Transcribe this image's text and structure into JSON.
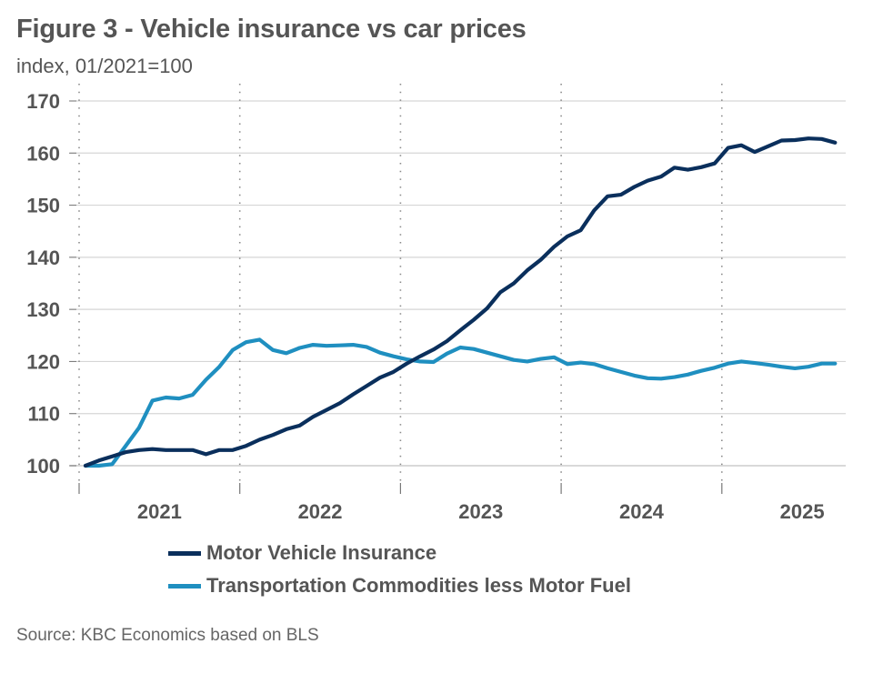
{
  "title": "Figure 3 - Vehicle insurance vs car prices",
  "subtitle": "index, 01/2021=100",
  "source": "Source: KBC Economics based on BLS",
  "chart_data": {
    "type": "line",
    "title": "Figure 3 - Vehicle insurance vs car prices",
    "subtitle": "index, 01/2021=100",
    "xlabel": "",
    "ylabel": "index, 01/2021=100",
    "ylim": [
      100,
      170
    ],
    "yticks": [
      100,
      110,
      120,
      130,
      140,
      150,
      160,
      170
    ],
    "xticks": [
      "2021",
      "2022",
      "2023",
      "2024",
      "2025"
    ],
    "x_start": "2021-01",
    "x_frequency": "monthly",
    "grid": "horizontal",
    "year_separators": "dotted vertical",
    "legend_position": "bottom",
    "colors": {
      "insurance": "#0a2f5c",
      "transport": "#1f8fc0"
    },
    "series": [
      {
        "name": "Motor Vehicle Insurance",
        "color": "#0a2f5c",
        "values": [
          100.0,
          101.0,
          101.8,
          102.6,
          103.0,
          103.2,
          103.0,
          103.0,
          103.0,
          102.2,
          103.0,
          103.0,
          103.8,
          105.0,
          105.9,
          107.0,
          107.7,
          109.4,
          110.7,
          112.0,
          113.7,
          115.3,
          116.9,
          118.0,
          119.6,
          121.0,
          122.3,
          123.9,
          126.0,
          128.0,
          130.2,
          133.3,
          135.0,
          137.5,
          139.5,
          142.0,
          144.0,
          145.2,
          149.0,
          151.7,
          152.0,
          153.5,
          154.7,
          155.5,
          157.2,
          156.8,
          157.3,
          158.0,
          161.0,
          161.5,
          160.2,
          161.3,
          162.4,
          162.5,
          162.8,
          162.7,
          162.0
        ]
      },
      {
        "name": "Transportation Commodities less Motor Fuel",
        "color": "#1f8fc0",
        "values": [
          100.0,
          100.0,
          100.3,
          103.8,
          107.3,
          112.5,
          113.1,
          112.9,
          113.6,
          116.5,
          119.0,
          122.2,
          123.7,
          124.2,
          122.2,
          121.6,
          122.6,
          123.2,
          123.0,
          123.1,
          123.2,
          122.8,
          121.7,
          121.0,
          120.4,
          120.0,
          119.9,
          121.5,
          122.7,
          122.4,
          121.7,
          121.0,
          120.3,
          120.0,
          120.5,
          120.8,
          119.5,
          119.8,
          119.5,
          118.7,
          118.0,
          117.3,
          116.8,
          116.7,
          117.0,
          117.5,
          118.2,
          118.8,
          119.6,
          120.0,
          119.7,
          119.4,
          119.0,
          118.7,
          119.0,
          119.6,
          119.6
        ]
      }
    ]
  },
  "legend": [
    {
      "label": "Motor Vehicle Insurance",
      "color": "#0a2f5c"
    },
    {
      "label": "Transportation Commodities less Motor Fuel",
      "color": "#1f8fc0"
    }
  ]
}
